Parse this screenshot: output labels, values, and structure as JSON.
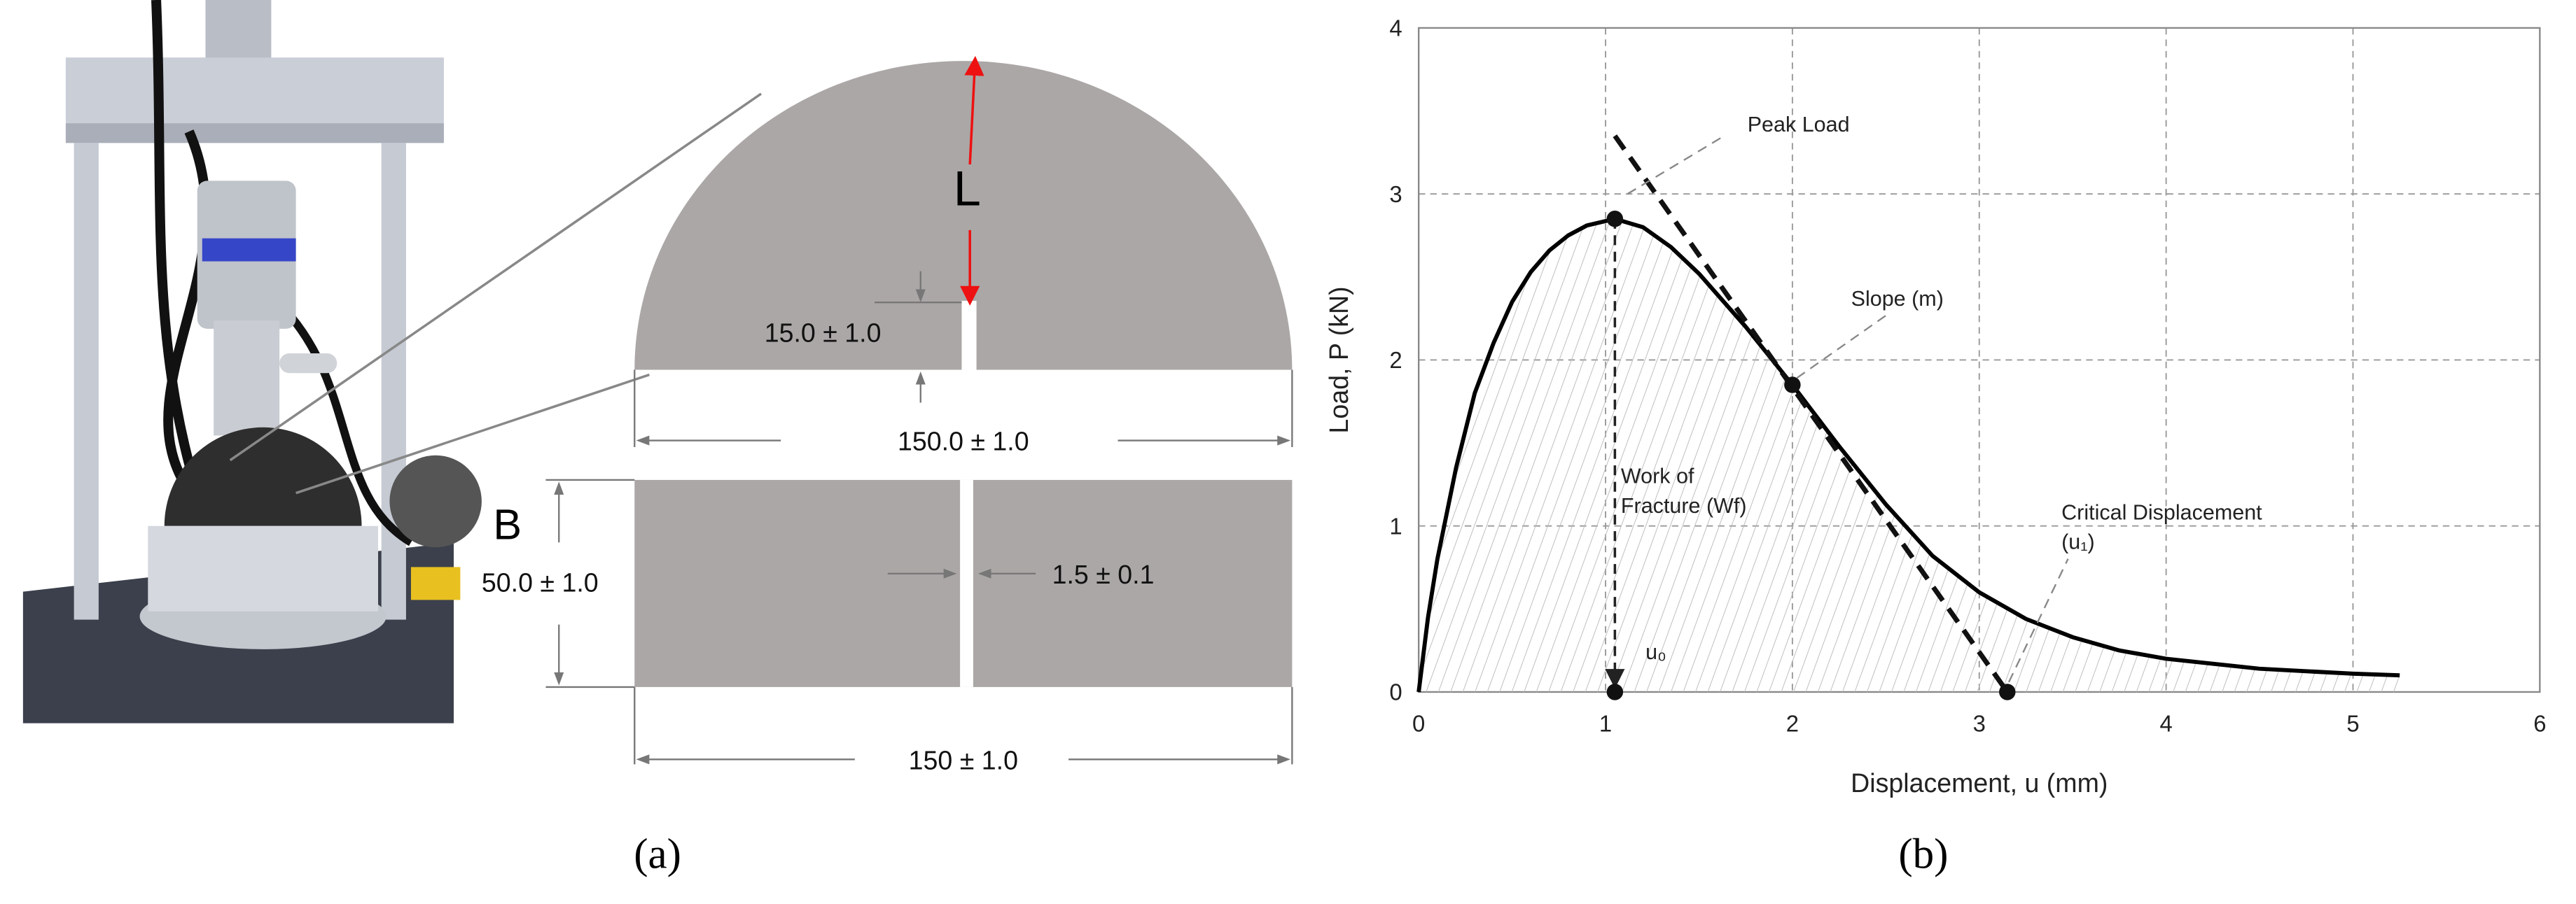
{
  "panel_a": {
    "caption": "(a)",
    "labels": [
      "L",
      "15.0 ± 1.0",
      "150.0 ± 1.0",
      "B",
      "50.0 ± 1.0",
      "1.5 ± 0.1",
      "150 ± 1.0"
    ]
  },
  "chart_data": {
    "type": "line",
    "caption": "(b)",
    "x_label": "Displacement, u (mm)",
    "y_label": "Load, P (kN)",
    "xlim": [
      0,
      6
    ],
    "ylim": [
      0,
      4
    ],
    "xticks": [
      0,
      1,
      2,
      3,
      4,
      5,
      6
    ],
    "yticks": [
      0,
      1,
      2,
      3,
      4
    ],
    "grid": true,
    "curve": {
      "color": "#000000",
      "x": [
        0,
        0.05,
        0.1,
        0.2,
        0.3,
        0.4,
        0.5,
        0.6,
        0.7,
        0.8,
        0.9,
        1.05,
        1.2,
        1.35,
        1.5,
        1.75,
        2.0,
        2.25,
        2.5,
        2.75,
        3.0,
        3.25,
        3.5,
        3.75,
        4.0,
        4.5,
        5.0,
        5.25
      ],
      "values": [
        0,
        0.45,
        0.8,
        1.35,
        1.8,
        2.1,
        2.35,
        2.53,
        2.66,
        2.75,
        2.81,
        2.85,
        2.8,
        2.68,
        2.52,
        2.2,
        1.85,
        1.48,
        1.13,
        0.82,
        0.6,
        0.44,
        0.33,
        0.25,
        0.2,
        0.14,
        0.11,
        0.1
      ]
    },
    "tangent": {
      "x": [
        1.05,
        3.15
      ],
      "values": [
        3.35,
        0
      ]
    },
    "points": {
      "x": [
        1.05,
        2.0,
        1.05,
        3.15
      ],
      "values": [
        2.85,
        1.85,
        0,
        0
      ]
    },
    "annotations": [
      "Peak Load",
      "Slope (m)",
      "Work of",
      "Fracture (Wf)",
      "Critical Displacement",
      "(u₁)",
      "u₀"
    ]
  }
}
